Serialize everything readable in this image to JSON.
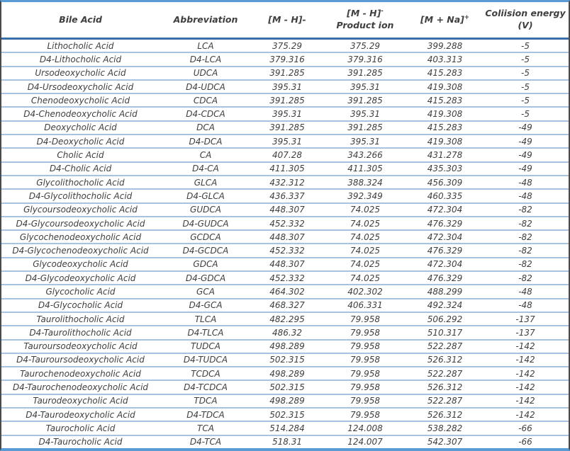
{
  "table": {
    "columns": [
      {
        "key": "bile-acid",
        "label": "Bile Acid"
      },
      {
        "key": "abbreviation",
        "label": "Abbreviation"
      },
      {
        "key": "m-minus-h",
        "label": "[M - H]-"
      },
      {
        "key": "m-minus-h-product-ion",
        "label": "[M - H]",
        "sup": "-",
        "label2": "Product ion"
      },
      {
        "key": "m-plus-na",
        "label": "[M + Na]",
        "sup": "+"
      },
      {
        "key": "collision-energy",
        "label": "Coliision energy",
        "label2": "(V)"
      }
    ],
    "rows": [
      [
        "Lithocholic Acid",
        "LCA",
        "375.29",
        "375.29",
        "399.288",
        "-5"
      ],
      [
        "D4-Lithocholic Acid",
        "D4-LCA",
        "379.316",
        "379.316",
        "403.313",
        "-5"
      ],
      [
        "Ursodeoxycholic Acid",
        "UDCA",
        "391.285",
        "391.285",
        "415.283",
        "-5"
      ],
      [
        "D4-Ursodeoxycholic Acid",
        "D4-UDCA",
        "395.31",
        "395.31",
        "419.308",
        "-5"
      ],
      [
        "Chenodeoxycholic Acid",
        "CDCA",
        "391.285",
        "391.285",
        "415.283",
        "-5"
      ],
      [
        "D4-Chenodeoxycholic Acid",
        "D4-CDCA",
        "395.31",
        "395.31",
        "419.308",
        "-5"
      ],
      [
        "Deoxycholic Acid",
        "DCA",
        "391.285",
        "391.285",
        "415.283",
        "-49"
      ],
      [
        "D4-Deoxycholic Acid",
        "D4-DCA",
        "395.31",
        "395.31",
        "419.308",
        "-49"
      ],
      [
        "Cholic Acid",
        "CA",
        "407.28",
        "343.266",
        "431.278",
        "-49"
      ],
      [
        "D4-Cholic Acid",
        "D4-CA",
        "411.305",
        "411.305",
        "435.303",
        "-49"
      ],
      [
        "Glycolithocholic Acid",
        "GLCA",
        "432.312",
        "388.324",
        "456.309",
        "-48"
      ],
      [
        "D4-Glycolithocholic Acid",
        "D4-GLCA",
        "436.337",
        "392.349",
        "460.335",
        "-48"
      ],
      [
        "Glycoursodeoxycholic Acid",
        "GUDCA",
        "448.307",
        "74.025",
        "472.304",
        "-82"
      ],
      [
        "D4-Glycoursodeoxycholic Acid",
        "D4-GUDCA",
        "452.332",
        "74.025",
        "476.329",
        "-82"
      ],
      [
        "Glycochenodeoxycholic Acid",
        "GCDCA",
        "448.307",
        "74.025",
        "472.304",
        "-82"
      ],
      [
        "D4-Glycochenodeoxycholic Acid",
        "D4-GCDCA",
        "452.332",
        "74.025",
        "476.329",
        "-82"
      ],
      [
        "Glycodeoxycholic Acid",
        "GDCA",
        "448.307",
        "74.025",
        "472.304",
        "-82"
      ],
      [
        "D4-Glycodeoxycholic Acid",
        "D4-GDCA",
        "452.332",
        "74.025",
        "476.329",
        "-82"
      ],
      [
        "Glycocholic Acid",
        "GCA",
        "464.302",
        "402.302",
        "488.299",
        "-48"
      ],
      [
        "D4-Glycocholic Acid",
        "D4-GCA",
        "468.327",
        "406.331",
        "492.324",
        "-48"
      ],
      [
        "Taurolithocholic Acid",
        "TLCA",
        "482.295",
        "79.958",
        "506.292",
        "-137"
      ],
      [
        "D4-Taurolithocholic Acid",
        "D4-TLCA",
        "486.32",
        "79.958",
        "510.317",
        "-137"
      ],
      [
        "Tauroursodeoxycholic Acid",
        "TUDCA",
        "498.289",
        "79.958",
        "522.287",
        "-142"
      ],
      [
        "D4-Tauroursodeoxycholic Acid",
        "D4-TUDCA",
        "502.315",
        "79.958",
        "526.312",
        "-142"
      ],
      [
        "Taurochenodeoxycholic Acid",
        "TCDCA",
        "498.289",
        "79.958",
        "522.287",
        "-142"
      ],
      [
        "D4-Taurochenodeoxycholic Acid",
        "D4-TCDCA",
        "502.315",
        "79.958",
        "526.312",
        "-142"
      ],
      [
        "Taurodeoxycholic Acid",
        "TDCA",
        "498.289",
        "79.958",
        "522.287",
        "-142"
      ],
      [
        "D4-Taurodeoxycholic Acid",
        "D4-TDCA",
        "502.315",
        "79.958",
        "526.312",
        "-142"
      ],
      [
        "Taurocholic Acid",
        "TCA",
        "514.284",
        "124.008",
        "538.282",
        "-66"
      ],
      [
        "D4-Taurocholic Acid",
        "D4-TCA",
        "518.31",
        "124.007",
        "542.307",
        "-66"
      ]
    ]
  },
  "colors": {
    "top_border": "#5b9bd5",
    "bottom_border": "#5b9bd5",
    "side_border": "#4a4a4a",
    "header_separator": "#3a6ea8",
    "row_separator": "#a6c4e2",
    "text": "#3f3f3f"
  }
}
